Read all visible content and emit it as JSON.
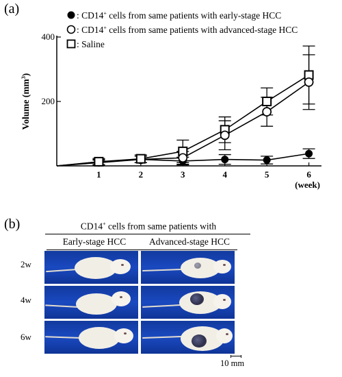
{
  "panel_a": {
    "label": "(a)",
    "legend": [
      {
        "marker": "filled-circle",
        "prefix": ": CD14",
        "sup": "+",
        "suffix": " cells  from same patients with early-stage HCC"
      },
      {
        "marker": "open-circle",
        "prefix": ": CD14",
        "sup": "+",
        "suffix": " cells  from same patients with advanced-stage HCC"
      },
      {
        "marker": "open-square",
        "prefix": ": Saline",
        "sup": "",
        "suffix": ""
      }
    ]
  },
  "chart_data": {
    "type": "line",
    "ylabel": "Volume (mm3)",
    "ylabel_main": "Volume (mm",
    "ylabel_sup": "3",
    "ylabel_close": ")",
    "xlabel": "(week)",
    "x": [
      0,
      1,
      2,
      3,
      4,
      5,
      6
    ],
    "xticks": [
      "1",
      "2",
      "3",
      "4",
      "5",
      "6"
    ],
    "yticks": [
      "200",
      "400"
    ],
    "xlim": [
      0,
      6.3
    ],
    "ylim": [
      0,
      400
    ],
    "series": [
      {
        "name": "CD14+ cells from same patients with early-stage HCC",
        "marker": "filled-circle",
        "values": [
          0,
          10,
          20,
          15,
          20,
          18,
          38
        ],
        "errors": [
          0,
          8,
          10,
          12,
          15,
          12,
          15
        ]
      },
      {
        "name": "CD14+ cells from same patients with advanced-stage HCC",
        "marker": "open-circle",
        "values": [
          0,
          12,
          20,
          25,
          95,
          168,
          260
        ],
        "errors": [
          0,
          8,
          10,
          20,
          45,
          45,
          85
        ]
      },
      {
        "name": "Saline",
        "marker": "open-square",
        "values": [
          0,
          13,
          22,
          45,
          112,
          200,
          282
        ],
        "errors": [
          0,
          10,
          12,
          35,
          40,
          42,
          90
        ]
      }
    ]
  },
  "panel_b": {
    "label": "(b)",
    "header_prefix": "CD14",
    "header_sup": "+",
    "header_suffix": " cells from same patients with",
    "columns": [
      "Early-stage HCC",
      "Advanced-stage HCC"
    ],
    "rows": [
      "2w",
      "4w",
      "6w"
    ],
    "scale_label": "10 mm"
  }
}
